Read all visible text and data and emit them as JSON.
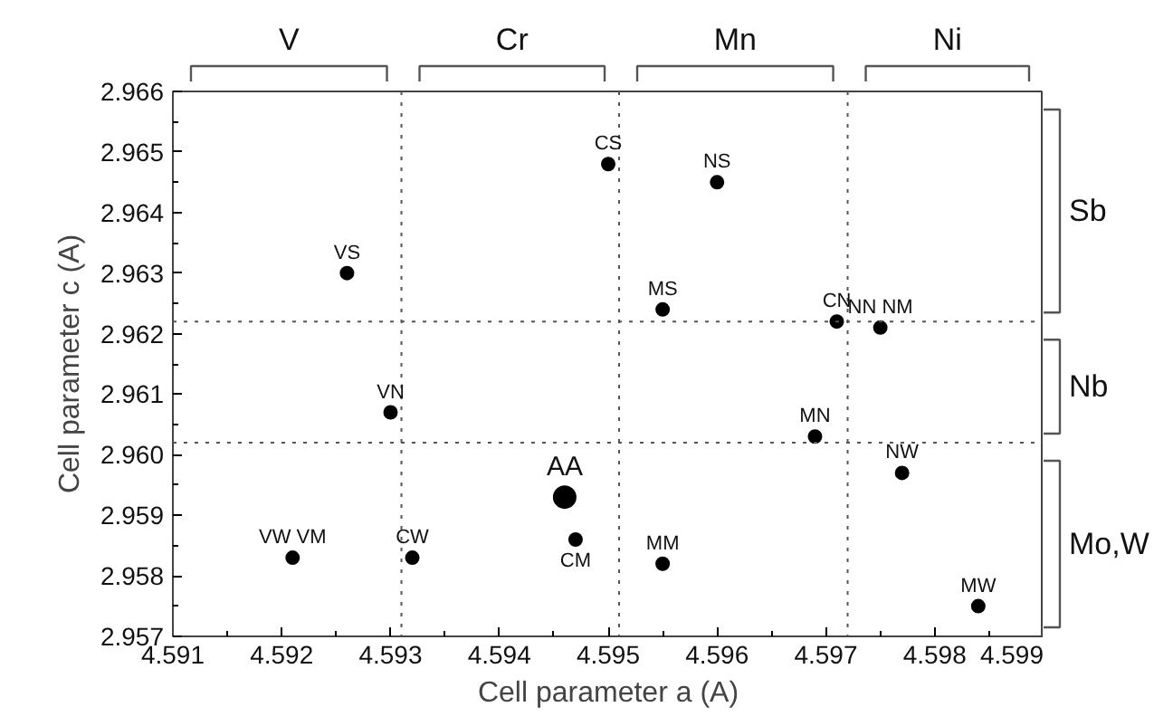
{
  "chart_data": {
    "type": "scatter",
    "xlabel": "Cell parameter a (A)",
    "ylabel": "Cell parameter c (A)",
    "xlim": [
      4.591,
      4.599
    ],
    "xticks": [
      4.591,
      4.592,
      4.593,
      4.594,
      4.595,
      4.596,
      4.597,
      4.598,
      4.599
    ],
    "ylim": [
      2.957,
      2.966
    ],
    "yticks": [
      2.957,
      2.958,
      2.959,
      {
        "value": 2.96,
        "label": "2.960"
      },
      2.961,
      2.962,
      2.963,
      2.964,
      2.965,
      2.966
    ],
    "marker": "circle",
    "grid": false,
    "series": [
      {
        "color": "#000000",
        "x": [
          4.5926,
          4.595,
          4.596,
          4.5955,
          4.5971,
          4.5975,
          4.593,
          4.5969,
          4.5977,
          4.5921,
          4.5932,
          4.5947,
          4.5955,
          4.5984
        ],
        "values": [
          2.963,
          2.9648,
          2.9645,
          2.9624,
          2.9622,
          2.9621,
          2.9607,
          2.9603,
          2.9597,
          2.9583,
          2.9583,
          2.9586,
          2.9582,
          2.9575
        ]
      },
      {
        "color": "#000000",
        "x": [
          4.5946
        ],
        "values": [
          2.9593
        ]
      }
    ],
    "ref_lines": [
      {
        "axis": "x",
        "value": 4.5931,
        "line_style": "dotted",
        "color": "#555555"
      },
      {
        "axis": "x",
        "value": 4.5951,
        "line_style": "dotted",
        "color": "#555555"
      },
      {
        "axis": "x",
        "value": 4.5972,
        "line_style": "dotted",
        "color": "#555555"
      },
      {
        "axis": "y",
        "value": 2.9622,
        "line_style": "dotted",
        "color": "#555555"
      },
      {
        "axis": "y",
        "value": 2.9602,
        "line_style": "dotted",
        "color": "#555555"
      }
    ],
    "annotations": [
      "V",
      "Cr",
      "Mn",
      "Ni",
      "Sb",
      "Nb",
      "Mo,W",
      {
        "text": "VS",
        "x": 4.5926,
        "y": 2.963
      },
      {
        "text": "CS",
        "x": 4.595,
        "y": 2.9648
      },
      {
        "text": "NS",
        "x": 4.596,
        "y": 2.9645
      },
      {
        "text": "MS",
        "x": 4.5955,
        "y": 2.9624
      },
      {
        "text": "CN",
        "x": 4.5971,
        "y": 2.9622
      },
      {
        "text": "NN NM",
        "x": 4.5975,
        "y": 2.9621
      },
      {
        "text": "VN",
        "x": 4.593,
        "y": 2.9607
      },
      {
        "text": "MN",
        "x": 4.5969,
        "y": 2.9603
      },
      {
        "text": "NW",
        "x": 4.5977,
        "y": 2.9597
      },
      {
        "text": "AA",
        "x": 4.5946,
        "y": 2.9593
      },
      {
        "text": "VW VM",
        "x": 4.5921,
        "y": 2.9583
      },
      {
        "text": "CW",
        "x": 4.5932,
        "y": 2.9583
      },
      {
        "text": "CM",
        "x": 4.5947,
        "y": 2.9586
      },
      {
        "text": "MM",
        "x": 4.5955,
        "y": 2.9582
      },
      {
        "text": "MW",
        "x": 4.5984,
        "y": 2.9575
      }
    ]
  }
}
